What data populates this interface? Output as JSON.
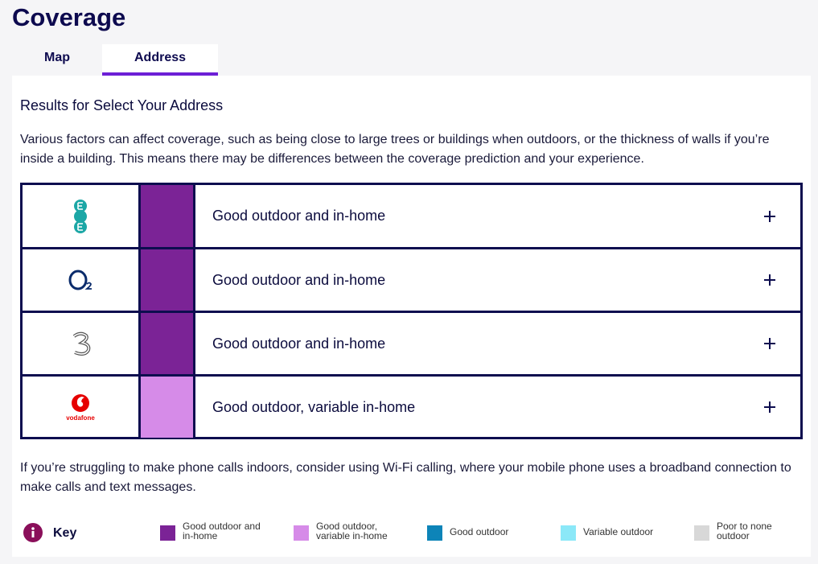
{
  "header": {
    "title": "Coverage"
  },
  "tabs": [
    "Map",
    "Address"
  ],
  "results": {
    "heading": "Results for Select Your Address",
    "intro": "Various factors can affect coverage, such as being close to large trees or buildings when outdoors, or the thickness of walls if you’re inside a building. This means there may be differences between the coverage prediction and your experience.",
    "rows": [
      {
        "logo": "ee",
        "status": "Good outdoor and in-home",
        "color": "#7b2396"
      },
      {
        "logo": "o2",
        "status": "Good outdoor and in-home",
        "color": "#7b2396"
      },
      {
        "logo": "three",
        "status": "Good outdoor and in-home",
        "color": "#7b2396"
      },
      {
        "logo": "vodafone",
        "logo_text": "vodafone",
        "status": "Good outdoor, variable in-home",
        "color": "#d68be8"
      }
    ],
    "note": "If you’re struggling to make phone calls indoors, consider using Wi-Fi calling, where your mobile phone uses a broadband connection to make calls and text messages."
  },
  "key": {
    "label": "Key",
    "items": [
      {
        "label": "Good outdoor and in-home",
        "color": "#7b2396"
      },
      {
        "label": "Good outdoor, variable in-home",
        "color": "#d68be8"
      },
      {
        "label": "Good outdoor",
        "color": "#0d84b8"
      },
      {
        "label": "Variable outdoor",
        "color": "#8be8f8"
      },
      {
        "label": "Poor to none outdoor",
        "color": "#d8d8d8"
      }
    ]
  }
}
